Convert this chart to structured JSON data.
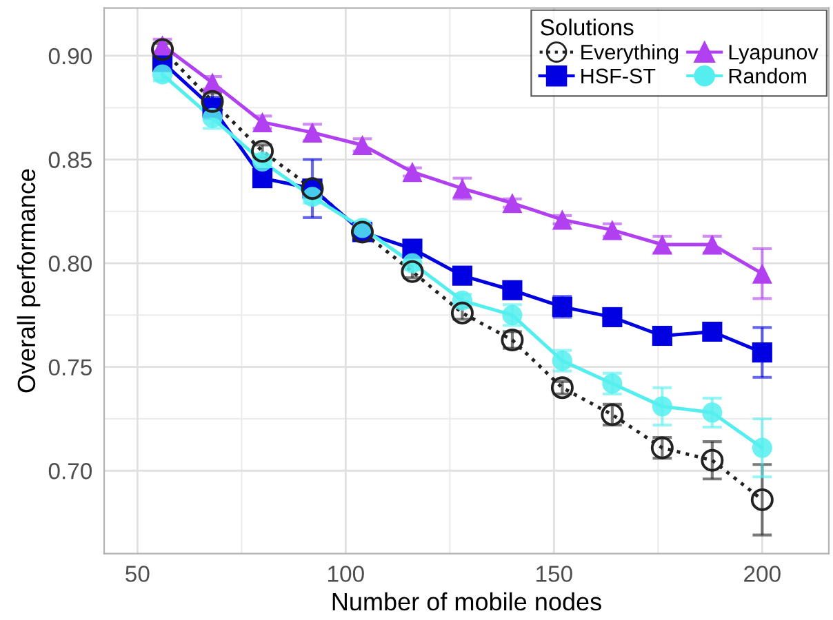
{
  "chart_data": {
    "type": "line",
    "xlabel": "Number of mobile nodes",
    "ylabel": "Overall performance",
    "legend_title": "Solutions",
    "legend": "top right",
    "grid": true,
    "x": [
      56,
      68,
      80,
      92,
      104,
      116,
      128,
      140,
      152,
      164,
      176,
      188,
      200
    ],
    "xlim": [
      42,
      216
    ],
    "xticks": [
      50,
      100,
      150,
      200
    ],
    "ylim": [
      0.66,
      0.923
    ],
    "yticks": [
      {
        "value": 0.7,
        "label": "0.70"
      },
      0.75,
      {
        "value": 0.8,
        "label": "0.80"
      },
      0.85,
      {
        "value": 0.9,
        "label": "0.90"
      }
    ],
    "series": [
      {
        "name": "Everything",
        "color": "#222222",
        "marker": "circle",
        "line_style": "dotted",
        "values": [
          0.903,
          0.878,
          0.854,
          0.836,
          0.815,
          0.796,
          0.776,
          0.763,
          0.74,
          0.727,
          0.711,
          0.705,
          0.686
        ],
        "errors": [
          0.003,
          0.004,
          0.003,
          null,
          null,
          0.003,
          0.003,
          0.004,
          0.003,
          0.005,
          0.005,
          0.009,
          0.017
        ]
      },
      {
        "name": "HSF-ST",
        "color": "#0000e0",
        "marker": "square",
        "line_style": "solid",
        "values": [
          0.897,
          0.875,
          0.841,
          0.836,
          0.815,
          0.807,
          0.794,
          0.787,
          0.779,
          0.774,
          0.765,
          0.767,
          0.757
        ],
        "errors": [
          0.003,
          0.005,
          0.003,
          0.014,
          null,
          0.003,
          0.003,
          0.003,
          0.005,
          0.004,
          0.004,
          0.003,
          0.012
        ]
      },
      {
        "name": "Lyapunov",
        "color": "#b040f0",
        "marker": "triangle",
        "line_style": "solid",
        "values": [
          0.905,
          0.887,
          0.868,
          0.863,
          0.857,
          0.844,
          0.836,
          0.829,
          0.821,
          0.816,
          0.809,
          0.809,
          0.795
        ],
        "errors": [
          0.003,
          0.003,
          0.003,
          0.004,
          0.003,
          0.002,
          0.005,
          0.002,
          0.002,
          0.003,
          0.004,
          0.004,
          0.012
        ]
      },
      {
        "name": "Random",
        "color": "#55eeee",
        "marker": "circle",
        "line_style": "solid",
        "values": [
          0.891,
          0.87,
          0.849,
          0.832,
          0.817,
          0.8,
          0.782,
          0.775,
          0.753,
          0.742,
          0.731,
          0.728,
          0.711
        ],
        "errors": [
          0.003,
          0.005,
          0.003,
          0.003,
          0.003,
          0.003,
          0.003,
          0.005,
          0.005,
          0.005,
          0.009,
          0.007,
          0.014
        ]
      }
    ]
  }
}
